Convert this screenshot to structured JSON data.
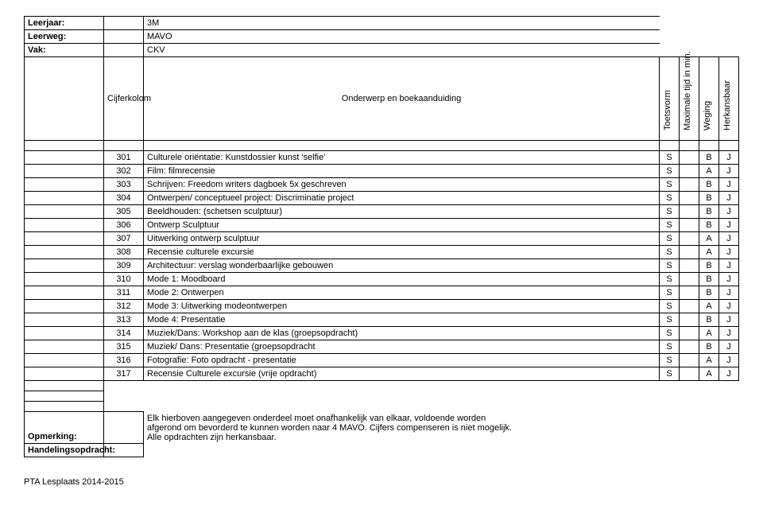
{
  "header": {
    "labels": {
      "leerjaar": "Leerjaar:",
      "leerweg": "Leerweg:",
      "vak": "Vak:"
    },
    "values": {
      "leerjaar": "3M",
      "leerweg": "MAVO",
      "vak": "CKV"
    }
  },
  "columns": {
    "cijferkolom": "Cijferkolom",
    "onderwerp": "Onderwerp en boekaanduiding",
    "toetsvorm": "Toetsvorm",
    "maxtijd": "Maximale tijd in min.",
    "weging": "Weging",
    "herkansbaar": "Herkansbaar"
  },
  "rows": [
    {
      "code": "301",
      "desc": "Culturele oriëntatie: Kunstdossier kunst 'selfie'",
      "c1": "S",
      "c2": "",
      "c3": "B",
      "c4": "J"
    },
    {
      "code": "302",
      "desc": "Film: filmrecensie",
      "c1": "S",
      "c2": "",
      "c3": "A",
      "c4": "J"
    },
    {
      "code": "303",
      "desc": "Schrijven: Freedom writers dagboek 5x geschreven",
      "c1": "S",
      "c2": "",
      "c3": "B",
      "c4": "J"
    },
    {
      "code": "304",
      "desc": "Ontwerpen/ conceptueel project: Discriminatie project",
      "c1": "S",
      "c2": "",
      "c3": "B",
      "c4": "J"
    },
    {
      "code": "305",
      "desc": "Beeldhouden: (schetsen sculptuur)",
      "c1": "S",
      "c2": "",
      "c3": "B",
      "c4": "J"
    },
    {
      "code": "306",
      "desc": "Ontwerp Sculptuur",
      "c1": "S",
      "c2": "",
      "c3": "B",
      "c4": "J"
    },
    {
      "code": "307",
      "desc": "Uitwerking ontwerp sculptuur",
      "c1": "S",
      "c2": "",
      "c3": "A",
      "c4": "J"
    },
    {
      "code": "308",
      "desc": "Recensie culturele excursie",
      "c1": "S",
      "c2": "",
      "c3": "A",
      "c4": "J"
    },
    {
      "code": "309",
      "desc": "Architectuur: verslag wonderbaarlijke gebouwen",
      "c1": "S",
      "c2": "",
      "c3": "B",
      "c4": "J"
    },
    {
      "code": "310",
      "desc": "Mode 1: Moodboard",
      "c1": "S",
      "c2": "",
      "c3": "B",
      "c4": "J"
    },
    {
      "code": "311",
      "desc": "Mode 2: Ontwerpen",
      "c1": "S",
      "c2": "",
      "c3": "B",
      "c4": "J"
    },
    {
      "code": "312",
      "desc": "Mode 3: Uitwerking modeontwerpen",
      "c1": "S",
      "c2": "",
      "c3": "A",
      "c4": "J"
    },
    {
      "code": "313",
      "desc": "Mode 4: Presentatie",
      "c1": "S",
      "c2": "",
      "c3": "B",
      "c4": "J"
    },
    {
      "code": "314",
      "desc": "Muziek/Dans: Workshop aan de klas (groepsopdracht)",
      "c1": "S",
      "c2": "",
      "c3": "A",
      "c4": "J"
    },
    {
      "code": "315",
      "desc": "Muziek/ Dans: Presentatie (groepsopdracht",
      "c1": "S",
      "c2": "",
      "c3": "B",
      "c4": "J"
    },
    {
      "code": "316",
      "desc": "Fotografie: Foto opdracht - presentatie",
      "c1": "S",
      "c2": "",
      "c3": "A",
      "c4": "J"
    },
    {
      "code": "317",
      "desc": "Recensie Culturele excursie (vrije opdracht)",
      "c1": "S",
      "c2": "",
      "c3": "A",
      "c4": "J"
    }
  ],
  "remarks": {
    "label_opmerking": "Opmerking:",
    "label_handeling": "Handelingsopdracht:",
    "line1": "Elk hierboven aangegeven onderdeel moet onafhankelijk van elkaar, voldoende worden",
    "line2": "afgerond om bevorderd te kunnen worden naar 4 MAVO. Cijfers compenseren is niet mogelijk.",
    "line3": "Alle opdrachten zijn herkansbaar."
  },
  "footer": "PTA Lesplaats 2014-2015",
  "style": {
    "background": "#ffffff",
    "border_color": "#000000",
    "font_size_body": 11,
    "font_family": "Arial"
  }
}
